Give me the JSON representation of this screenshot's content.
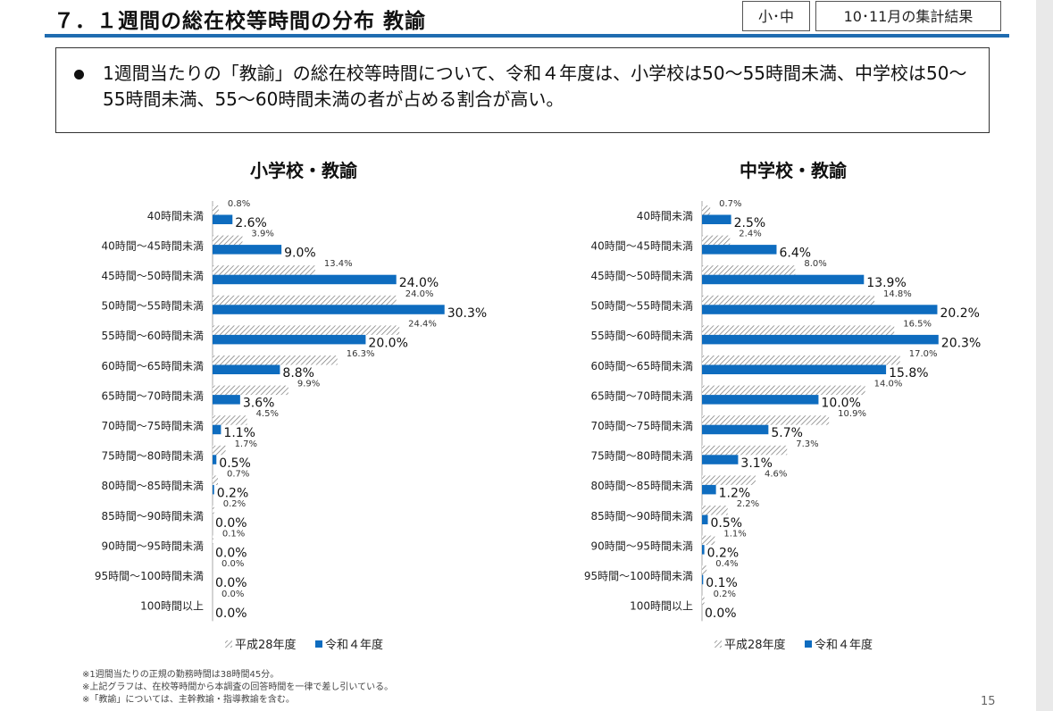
{
  "header": {
    "title": "７．１週間の総在校等時間の分布 教諭",
    "school_tag": "小･中",
    "period_tag": "10･11月の集計結果"
  },
  "summary": {
    "text": "1週間当たりの「教諭」の総在校等時間について、令和４年度は、小学校は50～55時間未満、中学校は50～55時間未満、55～60時間未満の者が占める割合が高い。"
  },
  "colors": {
    "accent": "#1f6cb0",
    "bar_r4": "#0e6cbf",
    "bar_h28_hatch": "#777777"
  },
  "legend": {
    "h28": "平成28年度",
    "r4": "令和４年度"
  },
  "chart_data": [
    {
      "type": "bar",
      "orientation": "horizontal",
      "title": "小学校・教諭",
      "categories": [
        "40時間未満",
        "40時間～45時間未満",
        "45時間～50時間未満",
        "50時間～55時間未満",
        "55時間～60時間未満",
        "60時間～65時間未満",
        "65時間～70時間未満",
        "70時間～75時間未満",
        "75時間～80時間未満",
        "80時間～85時間未満",
        "85時間～90時間未満",
        "90時間～95時間未満",
        "95時間～100時間未満",
        "100時間以上"
      ],
      "series": [
        {
          "name": "平成28年度",
          "values": [
            0.8,
            3.9,
            13.4,
            24.0,
            24.4,
            16.3,
            9.9,
            4.5,
            1.7,
            0.7,
            0.2,
            0.1,
            0.0,
            0.0
          ],
          "labels": [
            "0.8%",
            "3.9%",
            "13.4%",
            "24.0%",
            "24.4%",
            "16.3%",
            "9.9%",
            "4.5%",
            "1.7%",
            "0.7%",
            "0.2%",
            "0.1%",
            "0.0%",
            "0.0%"
          ]
        },
        {
          "name": "令和４年度",
          "values": [
            2.6,
            9.0,
            24.0,
            30.3,
            20.0,
            8.8,
            3.6,
            1.1,
            0.5,
            0.2,
            0.0,
            0.0,
            0.0,
            0.0
          ],
          "labels": [
            "2.6%",
            "9.0%",
            "24.0%",
            "30.3%",
            "20.0%",
            "8.8%",
            "3.6%",
            "1.1%",
            "0.5%",
            "0.2%",
            "0.0%",
            "0.0%",
            "0.0%",
            "0.0%"
          ]
        }
      ],
      "xlim": [
        0,
        35
      ],
      "xlabel": "",
      "ylabel": "",
      "legend_position": "bottom"
    },
    {
      "type": "bar",
      "orientation": "horizontal",
      "title": "中学校・教諭",
      "categories": [
        "40時間未満",
        "40時間～45時間未満",
        "45時間～50時間未満",
        "50時間～55時間未満",
        "55時間～60時間未満",
        "60時間～65時間未満",
        "65時間～70時間未満",
        "70時間～75時間未満",
        "75時間～80時間未満",
        "80時間～85時間未満",
        "85時間～90時間未満",
        "90時間～95時間未満",
        "95時間～100時間未満",
        "100時間以上"
      ],
      "series": [
        {
          "name": "平成28年度",
          "values": [
            0.7,
            2.4,
            8.0,
            14.8,
            16.5,
            17.0,
            14.0,
            10.9,
            7.3,
            4.6,
            2.2,
            1.1,
            0.4,
            0.2
          ],
          "labels": [
            "0.7%",
            "2.4%",
            "8.0%",
            "14.8%",
            "16.5%",
            "17.0%",
            "14.0%",
            "10.9%",
            "7.3%",
            "4.6%",
            "2.2%",
            "1.1%",
            "0.4%",
            "0.2%"
          ]
        },
        {
          "name": "令和４年度",
          "values": [
            2.5,
            6.4,
            13.9,
            20.2,
            20.3,
            15.8,
            10.0,
            5.7,
            3.1,
            1.2,
            0.5,
            0.2,
            0.1,
            0.0
          ],
          "labels": [
            "2.5%",
            "6.4%",
            "13.9%",
            "20.2%",
            "20.3%",
            "15.8%",
            "10.0%",
            "5.7%",
            "3.1%",
            "1.2%",
            "0.5%",
            "0.2%",
            "0.1%",
            "0.0%"
          ]
        }
      ],
      "xlim": [
        0,
        23
      ],
      "xlabel": "",
      "ylabel": "",
      "legend_position": "bottom"
    }
  ],
  "footnotes": [
    "※1週間当たりの正規の勤務時間は38時間45分。",
    "※上記グラフは、在校等時間から本調査の回答時間を一律で差し引いている。",
    "※「教諭」については、主幹教諭・指導教諭を含む。"
  ],
  "page_number": "15"
}
